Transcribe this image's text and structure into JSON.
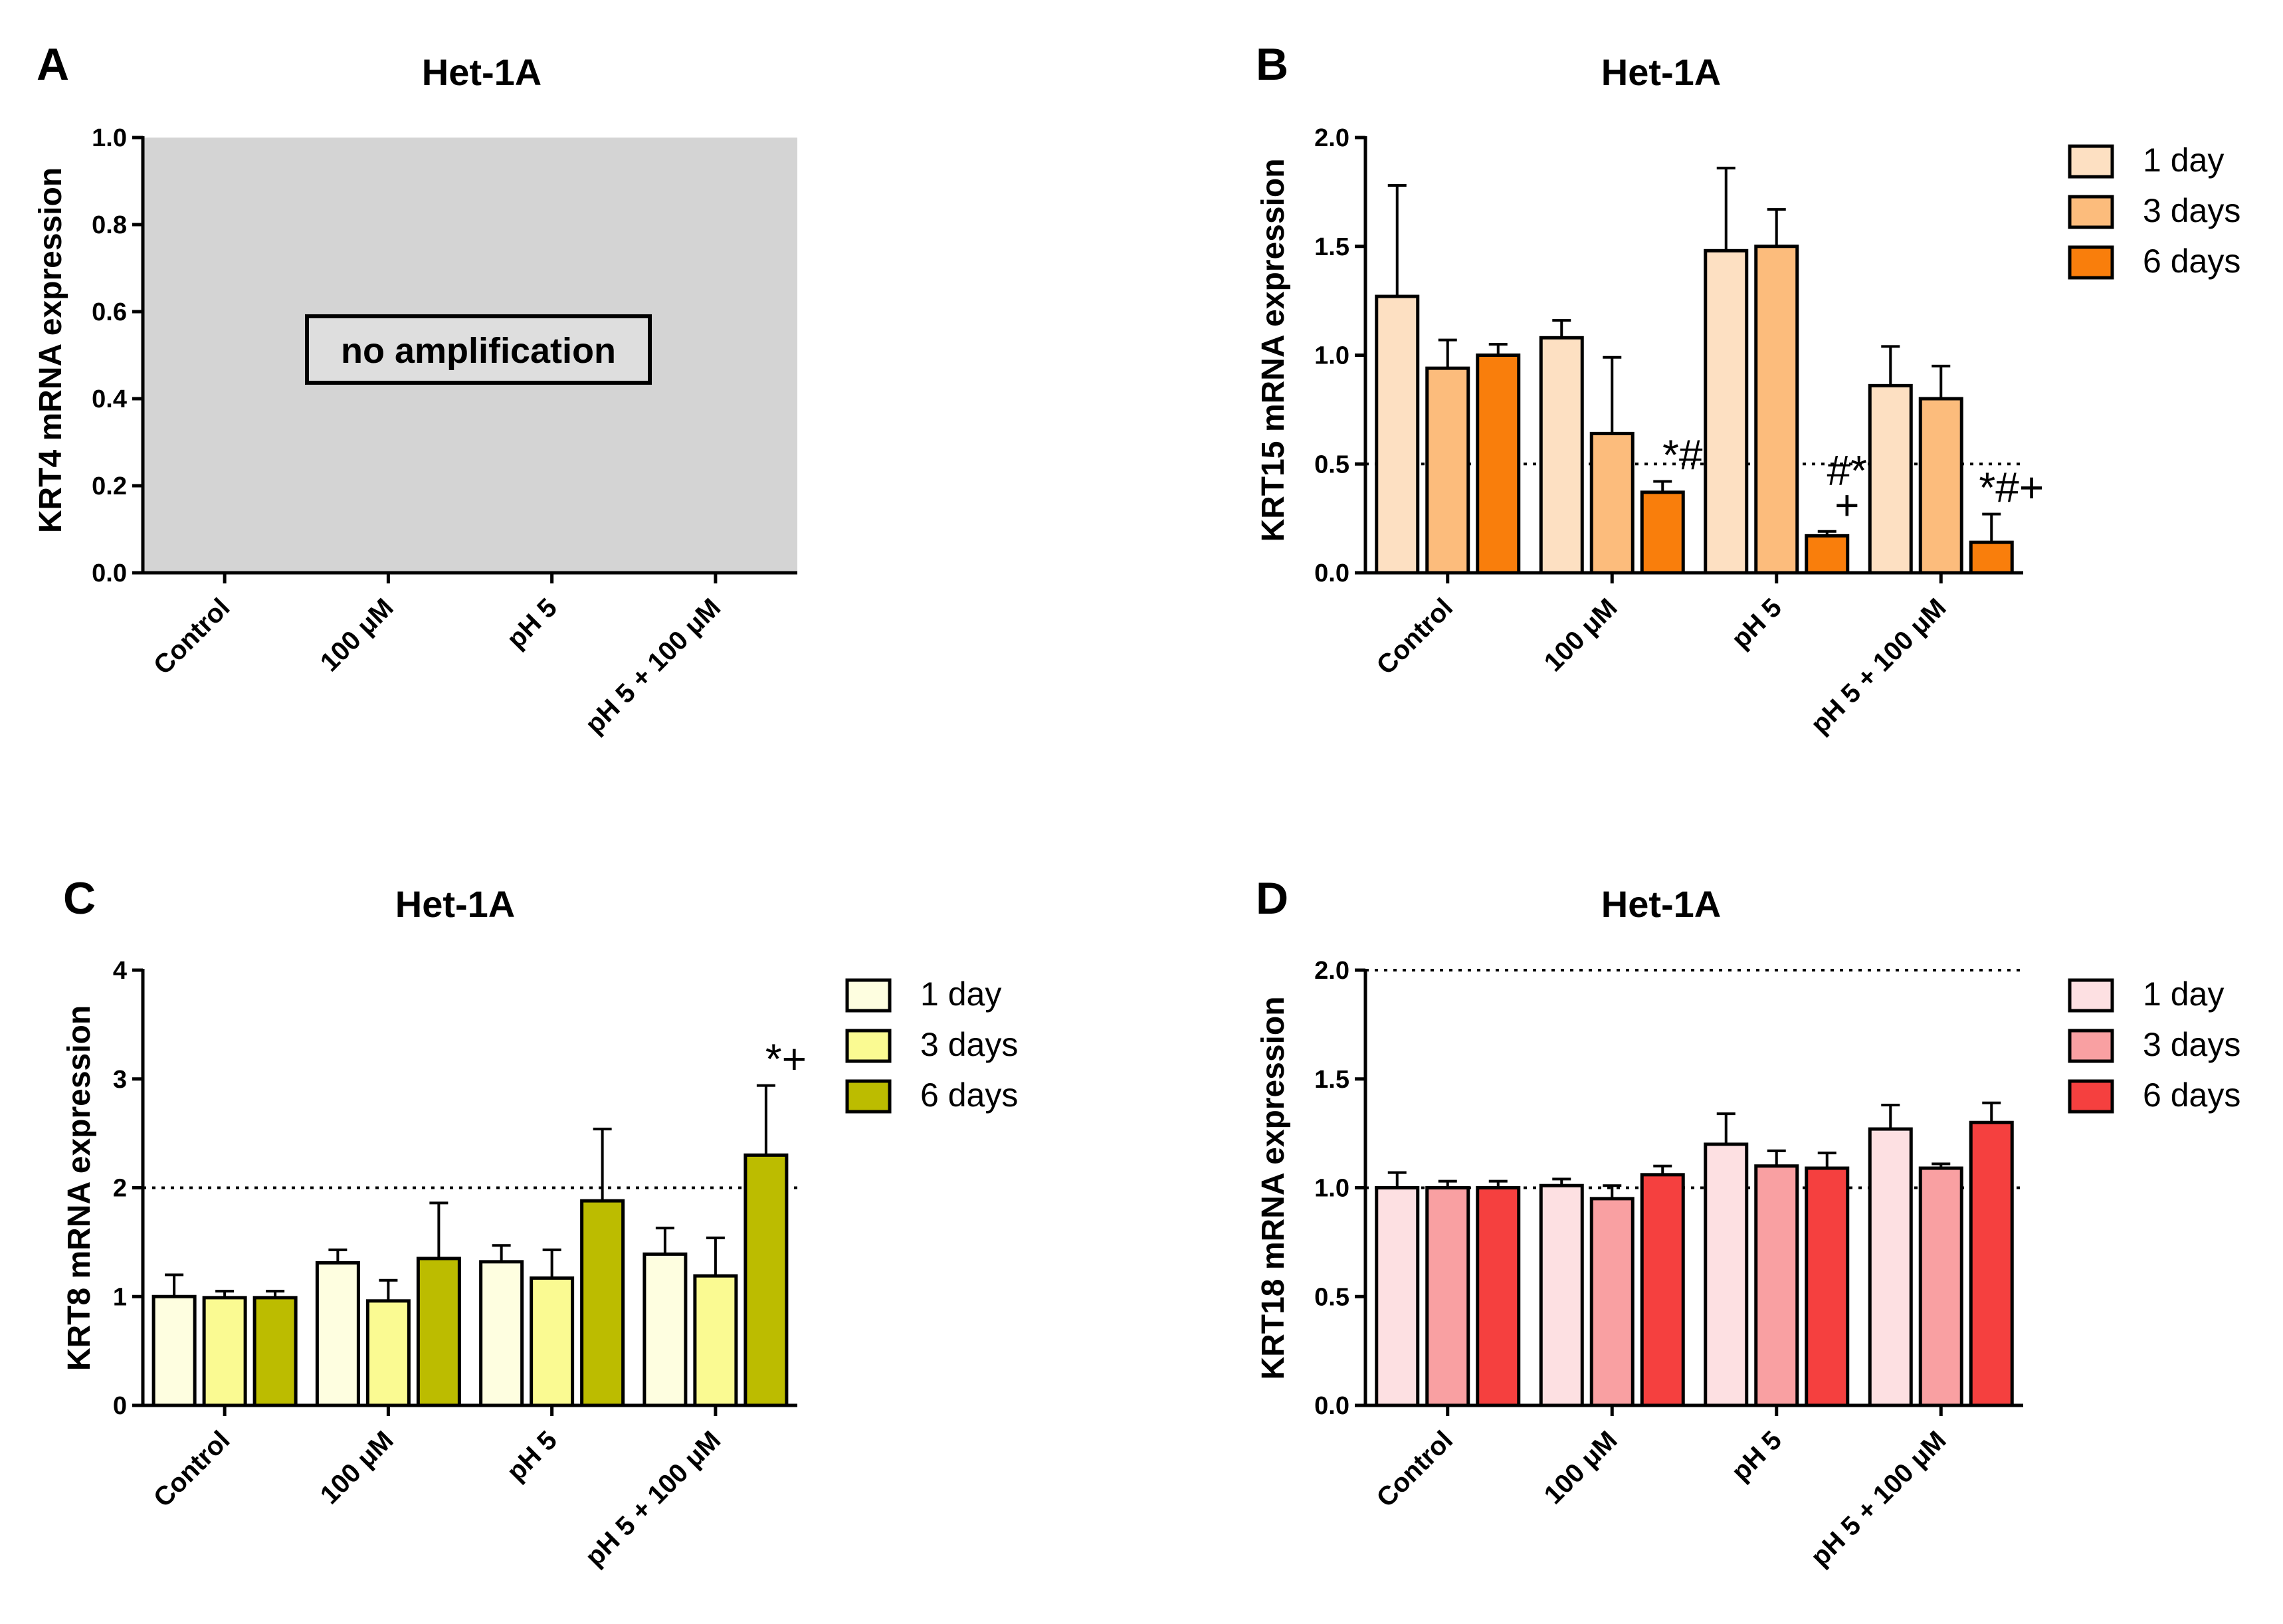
{
  "chart_data": [
    {
      "panel": "A",
      "type": "bar",
      "title": "Het-1A",
      "ylabel": "KRT4 mRNA expression",
      "ylim": [
        0,
        1.0
      ],
      "yticks": [
        "0.0",
        "0.2",
        "0.4",
        "0.6",
        "0.8",
        "1.0"
      ],
      "categories": [
        "Control",
        "100 μM",
        "pH 5",
        "pH 5 + 100 μM"
      ],
      "series": [],
      "background": "#d4d4d4",
      "annotation_box": "no amplification"
    },
    {
      "panel": "B",
      "type": "bar",
      "title": "Het-1A",
      "ylabel": "KRT15 mRNA expression",
      "ylim": [
        0,
        2.0
      ],
      "yticks": [
        "0.0",
        "0.5",
        "1.0",
        "1.5",
        "2.0"
      ],
      "reference_line": 0.5,
      "categories": [
        "Control",
        "100 μM",
        "pH 5",
        "pH 5 + 100 μM"
      ],
      "series": [
        {
          "name": "1 day",
          "color": "#fde0c2",
          "values": [
            1.27,
            1.08,
            1.48,
            0.86
          ],
          "errors": [
            0.51,
            0.08,
            0.38,
            0.18
          ]
        },
        {
          "name": "3 days",
          "color": "#fcbc7c",
          "values": [
            0.94,
            0.64,
            1.5,
            0.8
          ],
          "errors": [
            0.13,
            0.35,
            0.17,
            0.15
          ]
        },
        {
          "name": "6 days",
          "color": "#f97e0c",
          "values": [
            1.0,
            0.37,
            0.17,
            0.14
          ],
          "errors": [
            0.05,
            0.05,
            0.02,
            0.13
          ]
        }
      ],
      "annotations": [
        {
          "category": 1,
          "series": 2,
          "lines": [
            "*#"
          ]
        },
        {
          "category": 2,
          "series": 2,
          "lines": [
            "#*",
            "+"
          ]
        },
        {
          "category": 3,
          "series": 2,
          "lines": [
            "*#+"
          ]
        }
      ]
    },
    {
      "panel": "C",
      "type": "bar",
      "title": "Het-1A",
      "ylabel": "KRT8 mRNA expression",
      "ylim": [
        0,
        4
      ],
      "yticks": [
        "0",
        "1",
        "2",
        "3",
        "4"
      ],
      "reference_line": 2,
      "categories": [
        "Control",
        "100 μM",
        "pH 5",
        "pH 5 + 100 μM"
      ],
      "series": [
        {
          "name": "1 day",
          "color": "#fefee0",
          "values": [
            1.0,
            1.31,
            1.32,
            1.39
          ],
          "errors": [
            0.2,
            0.12,
            0.15,
            0.24
          ]
        },
        {
          "name": "3 days",
          "color": "#fafa92",
          "values": [
            0.99,
            0.96,
            1.17,
            1.19
          ],
          "errors": [
            0.06,
            0.19,
            0.26,
            0.35
          ]
        },
        {
          "name": "6 days",
          "color": "#bcbc00",
          "values": [
            0.99,
            1.35,
            1.88,
            2.3
          ],
          "errors": [
            0.06,
            0.51,
            0.66,
            0.64
          ]
        }
      ],
      "annotations": [
        {
          "category": 3,
          "series": 2,
          "lines": [
            "*+"
          ]
        }
      ]
    },
    {
      "panel": "D",
      "type": "bar",
      "title": "Het-1A",
      "ylabel": "KRT18 mRNA expression",
      "ylim": [
        0,
        2.0
      ],
      "yticks": [
        "0.0",
        "0.5",
        "1.0",
        "1.5",
        "2.0"
      ],
      "reference_lines": [
        1.0,
        2.0
      ],
      "categories": [
        "Control",
        "100 μM",
        "pH 5",
        "pH 5 + 100 μM"
      ],
      "series": [
        {
          "name": "1 day",
          "color": "#fde0e2",
          "values": [
            1.0,
            1.01,
            1.2,
            1.27
          ],
          "errors": [
            0.07,
            0.03,
            0.14,
            0.11
          ]
        },
        {
          "name": "3 days",
          "color": "#f9a0a2",
          "values": [
            1.0,
            0.95,
            1.1,
            1.09
          ],
          "errors": [
            0.03,
            0.06,
            0.07,
            0.02
          ]
        },
        {
          "name": "6 days",
          "color": "#f5403f",
          "values": [
            1.0,
            1.06,
            1.09,
            1.3
          ],
          "errors": [
            0.03,
            0.04,
            0.07,
            0.09
          ]
        }
      ],
      "annotations": []
    }
  ]
}
